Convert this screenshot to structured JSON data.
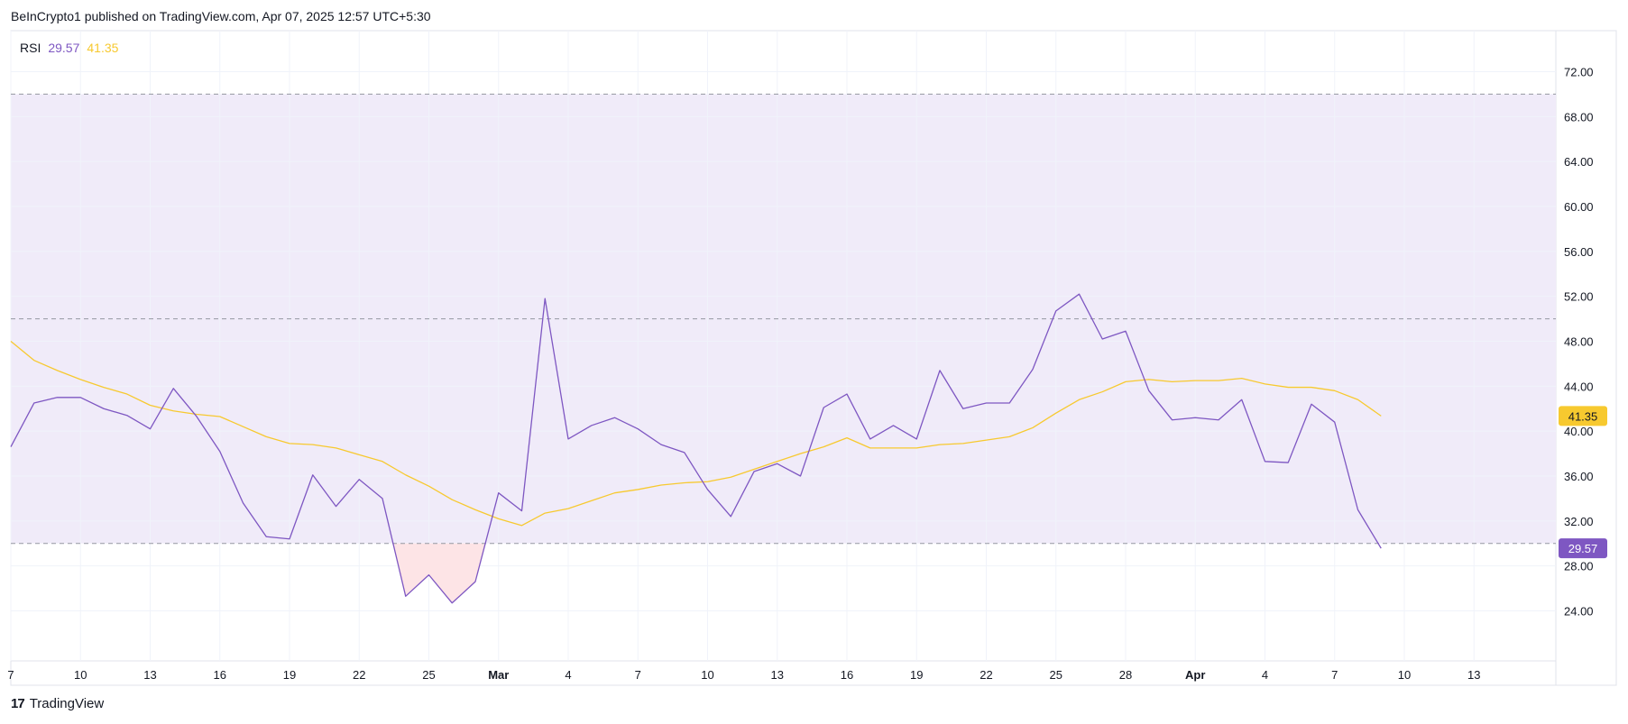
{
  "header": {
    "publish_text": "BeInCrypto1 published on TradingView.com, Apr 07, 2025 12:57 UTC+5:30"
  },
  "legend": {
    "label": "RSI",
    "rsi_value": "29.57",
    "ma_value": "41.35"
  },
  "footer": {
    "brand_logo": "17",
    "brand_name": "TradingView"
  },
  "colors": {
    "rsi": "#7e57c2",
    "ma": "#f7c92f",
    "band_fill": "#f0ebf9",
    "oversold_fill": "#fde4e6",
    "grid": "#f0f3fa",
    "band_line": "#9598a1"
  },
  "chart_data": {
    "type": "line",
    "title": "",
    "xlabel": "",
    "ylabel": "",
    "ylim": [
      20.5,
      75
    ],
    "x_ticks": [
      {
        "label": "7",
        "bold": false
      },
      {
        "label": "10",
        "bold": false
      },
      {
        "label": "13",
        "bold": false
      },
      {
        "label": "16",
        "bold": false
      },
      {
        "label": "19",
        "bold": false
      },
      {
        "label": "22",
        "bold": false
      },
      {
        "label": "25",
        "bold": false
      },
      {
        "label": "Mar",
        "bold": true
      },
      {
        "label": "4",
        "bold": false
      },
      {
        "label": "7",
        "bold": false
      },
      {
        "label": "10",
        "bold": false
      },
      {
        "label": "13",
        "bold": false
      },
      {
        "label": "16",
        "bold": false
      },
      {
        "label": "19",
        "bold": false
      },
      {
        "label": "22",
        "bold": false
      },
      {
        "label": "25",
        "bold": false
      },
      {
        "label": "28",
        "bold": false
      },
      {
        "label": "Apr",
        "bold": true
      },
      {
        "label": "4",
        "bold": false
      },
      {
        "label": "7",
        "bold": false
      },
      {
        "label": "10",
        "bold": false
      },
      {
        "label": "13",
        "bold": false
      }
    ],
    "y_ticks": [
      "72.00",
      "68.00",
      "64.00",
      "60.00",
      "56.00",
      "52.00",
      "48.00",
      "44.00",
      "40.00",
      "36.00",
      "32.00",
      "28.00",
      "24.00"
    ],
    "bands": {
      "upper": 70,
      "middle": 50,
      "lower": 30
    },
    "series": [
      {
        "name": "RSI",
        "last_label": "29.57",
        "values": [
          38.6,
          42.5,
          43.0,
          43.0,
          42.0,
          41.4,
          40.2,
          43.8,
          41.3,
          38.2,
          33.6,
          30.6,
          30.4,
          36.1,
          33.3,
          35.7,
          34.0,
          25.3,
          27.2,
          24.7,
          26.6,
          34.5,
          32.9,
          51.8,
          39.3,
          40.5,
          41.2,
          40.2,
          38.8,
          38.1,
          34.8,
          32.4,
          36.4,
          37.1,
          36.0,
          42.1,
          43.3,
          39.3,
          40.5,
          39.3,
          45.4,
          42.0,
          42.5,
          42.5,
          45.5,
          50.7,
          52.2,
          48.2,
          48.9,
          43.6,
          41.0,
          41.2,
          41.0,
          42.8,
          37.3,
          37.2,
          42.4,
          40.8,
          33.0,
          29.57
        ]
      },
      {
        "name": "RSI-based MA",
        "last_label": "41.35",
        "values": [
          48.0,
          46.3,
          45.4,
          44.6,
          43.9,
          43.3,
          42.3,
          41.8,
          41.5,
          41.3,
          40.4,
          39.5,
          38.9,
          38.8,
          38.5,
          37.9,
          37.3,
          36.1,
          35.1,
          33.9,
          33.0,
          32.2,
          31.6,
          32.7,
          33.1,
          33.8,
          34.5,
          34.8,
          35.2,
          35.4,
          35.5,
          35.9,
          36.6,
          37.3,
          38.0,
          38.6,
          39.4,
          38.5,
          38.5,
          38.5,
          38.8,
          38.9,
          39.2,
          39.5,
          40.3,
          41.6,
          42.8,
          43.5,
          44.4,
          44.6,
          44.4,
          44.5,
          44.5,
          44.7,
          44.2,
          43.9,
          43.9,
          43.6,
          42.8,
          41.35
        ]
      }
    ]
  }
}
